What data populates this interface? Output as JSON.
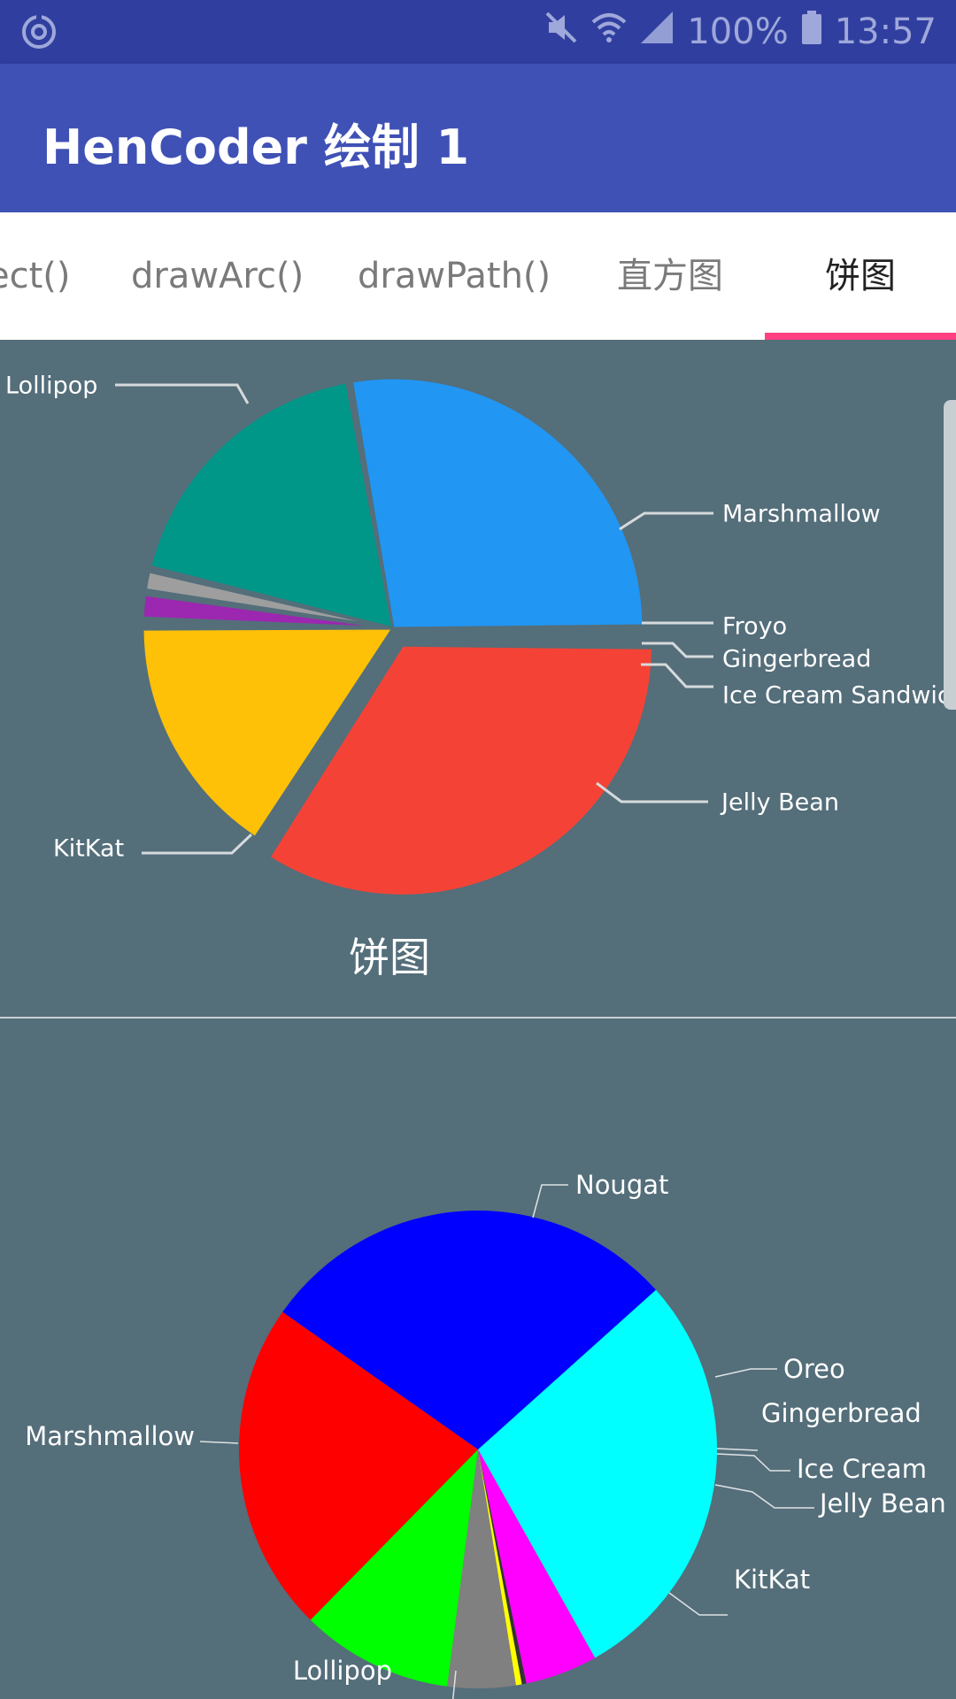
{
  "status_bar": {
    "battery": "100%",
    "time": "13:57"
  },
  "app_bar": {
    "title": "HenCoder 绘制 1"
  },
  "tabs": [
    {
      "label": "ect()"
    },
    {
      "label": "drawArc()"
    },
    {
      "label": "drawPath()"
    },
    {
      "label": "直方图"
    },
    {
      "label": "饼图",
      "selected": true
    }
  ],
  "colors": {
    "status_bar": "#303f9f",
    "app_bar": "#3f51b5",
    "accent": "#ff4081",
    "content_bg": "#546e7a"
  },
  "icons": {
    "status_left": "sync-icon",
    "mute": "mute-icon",
    "wifi": "wifi-icon",
    "signal": "signal-icon",
    "battery": "battery-icon"
  },
  "pie_caption": "饼图",
  "chart_data": [
    {
      "type": "pie",
      "title": "",
      "slices": [
        {
          "label": "Lollipop",
          "value": 34.1,
          "color": "#f44336",
          "exploded": true
        },
        {
          "label": "Marshmallow",
          "value": 16.0,
          "color": "#ffc107"
        },
        {
          "label": "Froyo",
          "value": 0.4,
          "color": "#ffffff"
        },
        {
          "label": "Gingerbread",
          "value": 1.8,
          "color": "#9c27b0"
        },
        {
          "label": "Ice Cream Sandwich",
          "value": 1.5,
          "color": "#9e9e9e"
        },
        {
          "label": "Jelly Bean",
          "value": 18.4,
          "color": "#009688"
        },
        {
          "label": "KitKat",
          "value": 27.8,
          "color": "#2196f3"
        }
      ]
    },
    {
      "type": "pie",
      "title": "",
      "slices": [
        {
          "label": "Nougat",
          "value": 28.5,
          "color": "#00ffff"
        },
        {
          "label": "Oreo",
          "value": 4.9,
          "color": "#ff00ff"
        },
        {
          "label": "Gingerbread",
          "value": 0.3,
          "color": "#333333"
        },
        {
          "label": "Ice Cream",
          "value": 0.4,
          "color": "#ffff00"
        },
        {
          "label": "Jelly Bean",
          "value": 4.6,
          "color": "#808080"
        },
        {
          "label": "KitKat",
          "value": 10.3,
          "color": "#00ff00"
        },
        {
          "label": "Lollipop",
          "value": 22.4,
          "color": "#ff0000"
        },
        {
          "label": "Marshmallow",
          "value": 28.6,
          "color": "#0000ff"
        }
      ]
    }
  ]
}
